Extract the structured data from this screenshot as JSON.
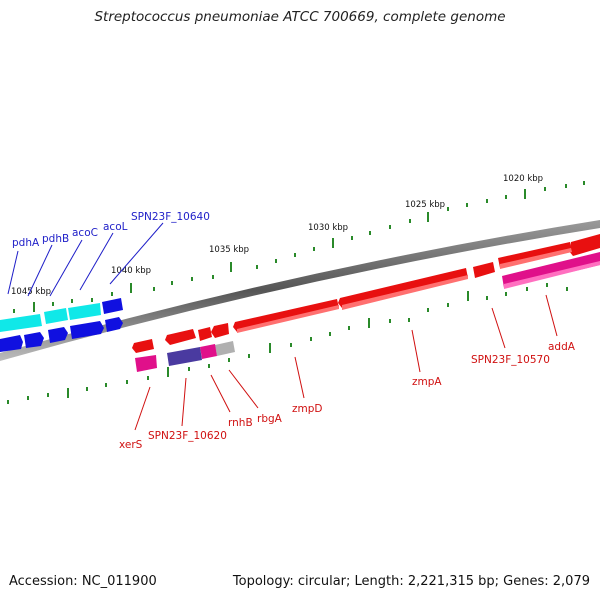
{
  "title": "Streptococcus pneumoniae ATCC 700669, complete genome",
  "footer": {
    "accession": "Accession: NC_011900",
    "summary": "Topology: circular; Length: 2,221,315 bp; Genes: 2,079"
  },
  "scale_labels": [
    "1020 kbp",
    "1025 kbp",
    "1030 kbp",
    "1035 kbp",
    "1040 kbp",
    "1045 kbp"
  ],
  "gene_labels_top": [
    "pdhA",
    "pdhB",
    "acoC",
    "acoL",
    "SPN23F_10640"
  ],
  "gene_labels_bottom": [
    "xerS",
    "SPN23F_10620",
    "rnhB",
    "rbgA",
    "zmpD",
    "zmpA",
    "SPN23F_10570",
    "addA"
  ],
  "colors": {
    "backbone": "#777777",
    "tick": "#2a8a2a",
    "gene_red": "#e81010",
    "gene_red_light": "#ff6060",
    "gene_blue": "#1010e0",
    "gene_cyan": "#10e8e8",
    "gene_magenta": "#e0108a",
    "gene_purple": "#4a3aa0",
    "gene_gray": "#b0b0b0",
    "label_blue": "#1e1ec8",
    "label_red": "#d01010"
  }
}
